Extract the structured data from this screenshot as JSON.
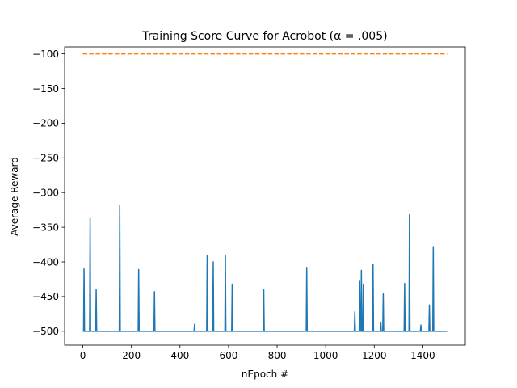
{
  "chart_data": {
    "type": "line",
    "title": "Training Score Curve for Acrobot (α = .005)",
    "xlabel": "nEpoch #",
    "ylabel": "Average Reward",
    "xlim": [
      -75,
      1575
    ],
    "ylim": [
      -520,
      -90
    ],
    "xticks": [
      0,
      200,
      400,
      600,
      800,
      1000,
      1200,
      1400
    ],
    "yticks": [
      -500,
      -450,
      -400,
      -350,
      -300,
      -250,
      -200,
      -150,
      -100
    ],
    "ytick_labels": [
      "−500",
      "−450",
      "−400",
      "−350",
      "−300",
      "−250",
      "−200",
      "−150",
      "−100"
    ],
    "grid": false,
    "legend": "none",
    "series": [
      {
        "type": "line",
        "color": "#1f77b4",
        "baseline": -500,
        "x_range": [
          0,
          1500
        ],
        "spikes": [
          {
            "x": 5,
            "y": -410
          },
          {
            "x": 30,
            "y": -337
          },
          {
            "x": 55,
            "y": -440
          },
          {
            "x": 152,
            "y": -318
          },
          {
            "x": 230,
            "y": -411
          },
          {
            "x": 295,
            "y": -443
          },
          {
            "x": 460,
            "y": -490
          },
          {
            "x": 512,
            "y": -391
          },
          {
            "x": 537,
            "y": -400
          },
          {
            "x": 587,
            "y": -390
          },
          {
            "x": 615,
            "y": -432
          },
          {
            "x": 745,
            "y": -440
          },
          {
            "x": 922,
            "y": -408
          },
          {
            "x": 1120,
            "y": -472
          },
          {
            "x": 1140,
            "y": -428
          },
          {
            "x": 1147,
            "y": -412
          },
          {
            "x": 1155,
            "y": -432
          },
          {
            "x": 1195,
            "y": -403
          },
          {
            "x": 1227,
            "y": -487
          },
          {
            "x": 1237,
            "y": -446
          },
          {
            "x": 1325,
            "y": -431
          },
          {
            "x": 1345,
            "y": -332
          },
          {
            "x": 1392,
            "y": -491
          },
          {
            "x": 1427,
            "y": -462
          },
          {
            "x": 1443,
            "y": -378
          }
        ]
      },
      {
        "type": "line",
        "style": "dashed",
        "color": "#ff7f0e",
        "x": [
          0,
          1500
        ],
        "y": [
          -100,
          -100
        ]
      }
    ]
  }
}
